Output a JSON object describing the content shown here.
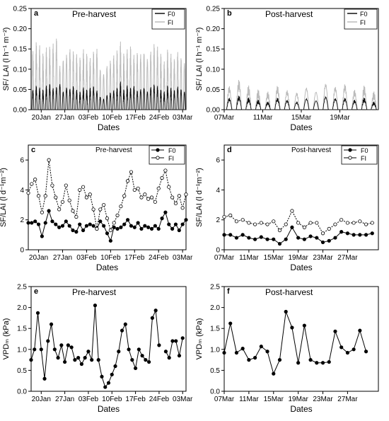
{
  "chart_data": [
    {
      "panel": "a",
      "type": "line",
      "title": "Pre-harvest",
      "ylabel": "SF/ LAI (l h⁻¹ m⁻²)",
      "xlabel": "Dates",
      "ylim": [
        0,
        0.25
      ],
      "yticks": [
        "0.00",
        "0.05",
        "0.10",
        "0.15",
        "0.20",
        "0.25"
      ],
      "ytick_values": [
        0,
        0.05,
        0.1,
        0.15,
        0.2,
        0.25
      ],
      "xlim": [
        0,
        46
      ],
      "xticks": [
        "20Jan",
        "27Jan",
        "03Feb",
        "10Feb",
        "17Feb",
        "24Feb",
        "03Mar"
      ],
      "xtick_values": [
        3,
        10,
        17,
        24,
        31,
        38,
        45
      ],
      "legend": "top-right",
      "diurnal_peaks": {
        "F0": [
          0.05,
          0.06,
          0.055,
          0.05,
          0.06,
          0.065,
          0.055,
          0.06,
          0.07,
          0.05,
          0.06,
          0.055,
          0.06,
          0.05,
          0.045,
          0.055,
          0.05,
          0.055,
          0.06,
          0.05,
          0.035,
          0.03,
          0.04,
          0.045,
          0.05,
          0.055,
          0.07,
          0.05,
          0.06,
          0.055,
          0.06,
          0.05,
          0.055,
          0.06,
          0.05,
          0.06,
          0.065,
          0.06,
          0.05,
          0.045,
          0.06,
          0.055,
          0.05,
          0.06,
          0.055,
          0.05
        ],
        "FI": [
          0.15,
          0.17,
          0.16,
          0.14,
          0.155,
          0.16,
          0.17,
          0.19,
          0.12,
          0.14,
          0.15,
          0.16,
          0.15,
          0.14,
          0.13,
          0.15,
          0.14,
          0.13,
          0.15,
          0.16,
          0.11,
          0.1,
          0.12,
          0.13,
          0.14,
          0.15,
          0.17,
          0.14,
          0.15,
          0.16,
          0.14,
          0.15,
          0.15,
          0.16,
          0.14,
          0.155,
          0.17,
          0.16,
          0.14,
          0.12,
          0.15,
          0.14,
          0.13,
          0.15,
          0.14,
          0.13
        ]
      },
      "series": [
        {
          "name": "F0",
          "color": "#111111"
        },
        {
          "name": "FI",
          "color": "#bbbbbb"
        }
      ]
    },
    {
      "panel": "b",
      "type": "line",
      "title": "Post-harvest",
      "ylabel": "SF/ LAI (l h⁻¹ m⁻²)",
      "xlabel": "Dates",
      "ylim": [
        0,
        0.25
      ],
      "yticks": [
        "0.00",
        "0.05",
        "0.10",
        "0.15",
        "0.20",
        "0.25"
      ],
      "ytick_values": [
        0,
        0.05,
        0.1,
        0.15,
        0.2,
        0.25
      ],
      "xlim": [
        0,
        16
      ],
      "xticks": [
        "07Mar",
        "11Mar",
        "15Mar",
        "19Mar"
      ],
      "xtick_values": [
        0,
        4,
        8,
        12
      ],
      "legend": "top-right",
      "diurnal_peaks": {
        "F0": [
          0.03,
          0.035,
          0.03,
          0.025,
          0.02,
          0.03,
          0.025,
          0.02,
          0.03,
          0.025,
          0.035,
          0.03,
          0.03,
          0.025,
          0.03,
          0.02
        ],
        "FI": [
          0.06,
          0.075,
          0.06,
          0.05,
          0.045,
          0.06,
          0.05,
          0.045,
          0.06,
          0.05,
          0.07,
          0.06,
          0.065,
          0.05,
          0.06,
          0.045
        ]
      },
      "series": [
        {
          "name": "F0",
          "color": "#111111"
        },
        {
          "name": "FI",
          "color": "#bbbbbb"
        }
      ]
    },
    {
      "panel": "c",
      "type": "line",
      "title": "Pre-harvest",
      "ylabel": "SF/LAI (l d⁻¹m⁻²)",
      "xlabel": "Dates",
      "ylim": [
        0,
        7
      ],
      "yticks": [
        "0",
        "2",
        "4",
        "6"
      ],
      "ytick_values": [
        0,
        2,
        4,
        6
      ],
      "xlim": [
        0,
        46
      ],
      "xticks": [
        "20Jan",
        "27Jan",
        "03Feb",
        "10Feb",
        "17Feb",
        "24Feb",
        "03Mar"
      ],
      "xtick_values": [
        3,
        10,
        17,
        24,
        31,
        38,
        45
      ],
      "legend": "top-right",
      "series": [
        {
          "name": "F0",
          "marker": "filled",
          "values": [
            1.8,
            1.8,
            1.9,
            1.7,
            0.9,
            1.8,
            2.6,
            1.9,
            1.7,
            1.5,
            1.6,
            1.9,
            1.6,
            1.3,
            1.2,
            1.7,
            1.3,
            1.6,
            1.7,
            1.6,
            1.4,
            1.9,
            1.6,
            1.1,
            0.6,
            1.5,
            1.4,
            1.5,
            1.7,
            2.0,
            1.6,
            1.5,
            1.8,
            1.4,
            1.6,
            1.5,
            1.4,
            1.6,
            1.4,
            2.1,
            2.5,
            1.7,
            1.4,
            1.7,
            1.3,
            1.7,
            2.0
          ]
        },
        {
          "name": "FI",
          "marker": "open",
          "values": [
            3.8,
            4.4,
            4.7,
            3.6,
            2.5,
            3.6,
            6.0,
            4.3,
            3.5,
            2.7,
            3.2,
            4.3,
            3.3,
            2.6,
            2.2,
            4.0,
            4.2,
            3.5,
            3.7,
            2.7,
            1.4,
            2.7,
            3.0,
            2.1,
            1.3,
            1.8,
            2.3,
            2.9,
            3.6,
            4.6,
            5.2,
            4.0,
            4.1,
            3.5,
            3.7,
            3.4,
            3.5,
            3.2,
            4.1,
            4.8,
            5.3,
            4.2,
            3.5,
            3.1,
            3.6,
            2.8,
            3.7
          ]
        }
      ]
    },
    {
      "panel": "d",
      "type": "line",
      "title": "Post-harvest",
      "ylabel": "SF/LAI (l d⁻¹m⁻²)",
      "xlabel": "Dates",
      "ylim": [
        0,
        7
      ],
      "yticks": [
        "0",
        "2",
        "4",
        "6"
      ],
      "ytick_values": [
        0,
        2,
        4,
        6
      ],
      "xlim": [
        0,
        25
      ],
      "xticks": [
        "07Mar",
        "11Mar",
        "15Mar",
        "19Mar",
        "23Mar",
        "27Mar"
      ],
      "xtick_values": [
        0,
        4,
        8,
        12,
        16,
        20
      ],
      "legend": "top-right",
      "series": [
        {
          "name": "F0",
          "marker": "filled",
          "values": [
            1.0,
            1.0,
            0.8,
            1.0,
            0.8,
            0.7,
            0.85,
            0.7,
            0.7,
            0.4,
            0.7,
            1.5,
            0.8,
            0.7,
            0.9,
            0.8,
            0.5,
            0.6,
            0.8,
            1.2,
            1.1,
            1.0,
            1.0,
            1.0,
            1.1
          ]
        },
        {
          "name": "FI",
          "marker": "open",
          "values": [
            2.2,
            2.3,
            1.9,
            2.0,
            1.8,
            1.7,
            1.8,
            1.7,
            1.9,
            1.3,
            1.7,
            2.6,
            1.8,
            1.5,
            1.8,
            1.8,
            1.1,
            1.4,
            1.7,
            2.0,
            1.8,
            1.8,
            1.9,
            1.7,
            1.8
          ]
        }
      ]
    },
    {
      "panel": "e",
      "type": "line",
      "title": "Pre-harvest",
      "ylabel": "VPDₘ (kPa)",
      "xlabel": "Dates",
      "ylim": [
        0,
        2.5
      ],
      "yticks": [
        "0.0",
        "0.5",
        "1.0",
        "1.5",
        "2.0",
        "2.5"
      ],
      "ytick_values": [
        0,
        0.5,
        1,
        1.5,
        2,
        2.5
      ],
      "xlim": [
        0,
        46
      ],
      "xticks": [
        "20Jan",
        "27Jan",
        "03Feb",
        "10Feb",
        "17Feb",
        "24Feb",
        "03Mar"
      ],
      "xtick_values": [
        3,
        10,
        17,
        24,
        31,
        38,
        45
      ],
      "series": [
        {
          "name": "VPD",
          "marker": "filled",
          "values": [
            0.75,
            1.0,
            1.87,
            1.0,
            0.3,
            1.2,
            1.6,
            1.0,
            0.8,
            1.1,
            0.7,
            1.1,
            1.05,
            0.75,
            0.8,
            0.65,
            0.8,
            0.95,
            0.75,
            2.05,
            0.75,
            0.35,
            0.1,
            0.2,
            0.4,
            0.6,
            0.95,
            1.45,
            1.6,
            1.0,
            0.75,
            0.55,
            1.0,
            0.85,
            0.75,
            0.7,
            1.75,
            1.93,
            1.1,
            null,
            0.95,
            0.8,
            1.2,
            1.2,
            0.85,
            1.27
          ]
        }
      ]
    },
    {
      "panel": "f",
      "type": "line",
      "title": "Post-harvest",
      "ylabel": "VPDₘ (kPa)",
      "xlabel": "Dates",
      "ylim": [
        0,
        2.5
      ],
      "yticks": [
        "0.0",
        "0.5",
        "1.0",
        "1.5",
        "2.0",
        "2.5"
      ],
      "ytick_values": [
        0,
        0.5,
        1,
        1.5,
        2,
        2.5
      ],
      "xlim": [
        0,
        25
      ],
      "xticks": [
        "07Mar",
        "11Mar",
        "15Mar",
        "19Mar",
        "23Mar",
        "27Mar"
      ],
      "xtick_values": [
        0,
        4,
        8,
        12,
        16,
        20
      ],
      "series": [
        {
          "name": "VPD",
          "marker": "filled",
          "values": [
            0.92,
            1.62,
            0.92,
            1.02,
            0.75,
            0.8,
            1.07,
            0.95,
            0.42,
            0.75,
            1.9,
            1.52,
            0.68,
            1.57,
            0.75,
            0.68,
            0.68,
            0.7,
            1.43,
            1.05,
            0.92,
            1.0,
            1.45,
            0.95
          ]
        }
      ]
    }
  ]
}
